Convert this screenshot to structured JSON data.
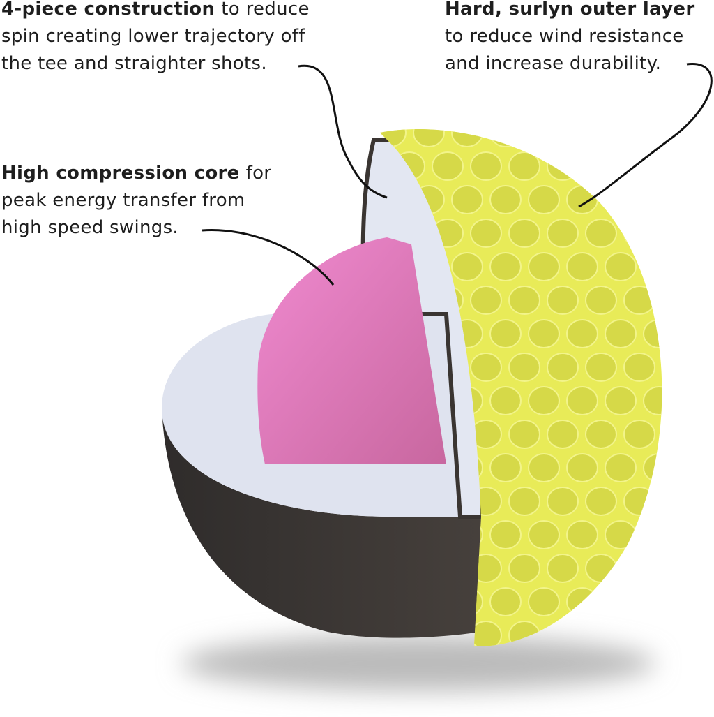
{
  "callouts": [
    {
      "bold": "4-piece construction",
      "lines": [
        "to reduce",
        "spin creating lower trajectory off",
        "the tee and straighter shots."
      ]
    },
    {
      "bold": "Hard, surlyn outer layer",
      "lines": [
        "",
        "to reduce wind resistance",
        "and increase durability."
      ]
    },
    {
      "bold": "High compression core",
      "lines": [
        "for",
        "peak energy transfer from",
        "high speed swings."
      ]
    }
  ]
}
